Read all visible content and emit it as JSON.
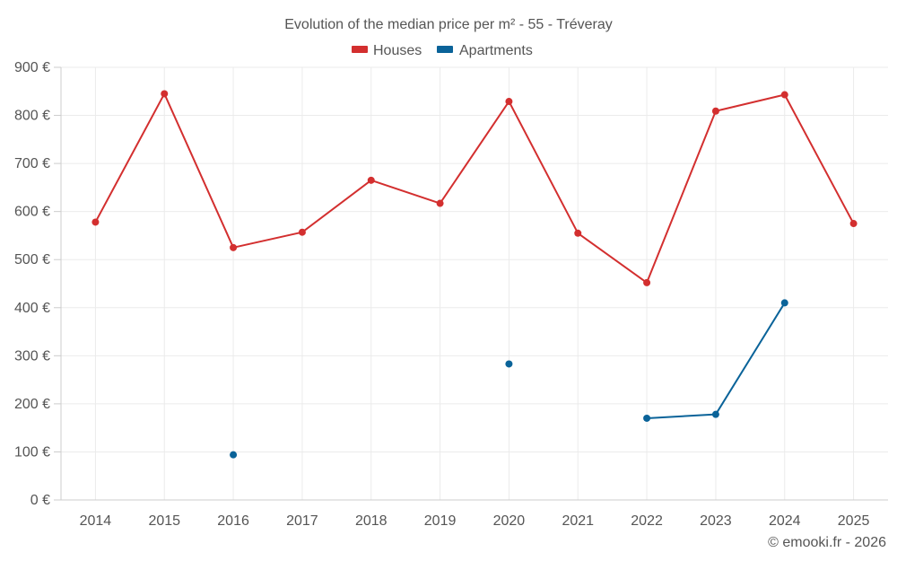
{
  "chart_data": {
    "type": "line",
    "title": "Evolution of the median price per m² - 55 - Tréveray",
    "xlabel": "",
    "ylabel": "",
    "x": [
      "2014",
      "2015",
      "2016",
      "2017",
      "2018",
      "2019",
      "2020",
      "2021",
      "2022",
      "2023",
      "2024",
      "2025"
    ],
    "y_ticks": [
      "0 €",
      "100 €",
      "200 €",
      "300 €",
      "400 €",
      "500 €",
      "600 €",
      "700 €",
      "800 €",
      "900 €"
    ],
    "ylim": [
      0,
      900
    ],
    "legend_position": "top-center",
    "grid": true,
    "series": [
      {
        "name": "Houses",
        "color": "#d32f2f",
        "values": [
          578,
          845,
          525,
          557,
          665,
          617,
          829,
          555,
          452,
          809,
          843,
          575
        ]
      },
      {
        "name": "Apartments",
        "color": "#0a6399",
        "values": [
          null,
          null,
          94,
          null,
          null,
          null,
          283,
          null,
          170,
          178,
          410,
          null
        ]
      }
    ],
    "credit": "© emooki.fr - 2026"
  }
}
